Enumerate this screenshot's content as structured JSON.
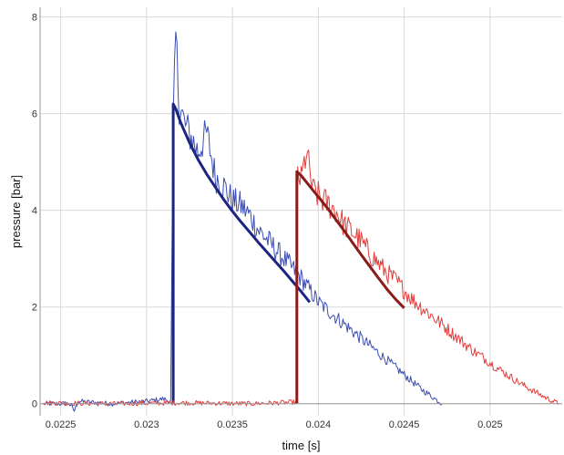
{
  "chart_data": {
    "type": "line",
    "title": "",
    "xlabel": "time [s]",
    "ylabel": "pressure [bar]",
    "xlim": [
      0.02238,
      0.02542
    ],
    "ylim": [
      -0.25,
      8.2
    ],
    "x_ticks": [
      {
        "value": 0.0225,
        "label": "0.0225"
      },
      {
        "value": 0.023,
        "label": "0.023"
      },
      {
        "value": 0.0235,
        "label": "0.0235"
      },
      {
        "value": 0.024,
        "label": "0.024"
      },
      {
        "value": 0.0245,
        "label": "0.0245"
      },
      {
        "value": 0.025,
        "label": "0.025"
      }
    ],
    "y_ticks": [
      {
        "value": 0,
        "label": "0"
      },
      {
        "value": 2,
        "label": "2"
      },
      {
        "value": 4,
        "label": "4"
      },
      {
        "value": 6,
        "label": "6"
      },
      {
        "value": 8,
        "label": "8"
      }
    ],
    "grid": true,
    "legend": "none",
    "series": [
      {
        "style": "measured",
        "color": "#3b4db3",
        "x": [
          0.0224,
          0.02255,
          0.02258,
          0.0226,
          0.0228,
          0.023,
          0.0231,
          0.02314,
          0.023155,
          0.02317,
          0.02319,
          0.02322,
          0.02326,
          0.0233,
          0.02335,
          0.0234,
          0.02345,
          0.0235,
          0.02355,
          0.0236,
          0.02365,
          0.0237,
          0.02375,
          0.0238,
          0.02385,
          0.0239,
          0.02395,
          0.024,
          0.02405,
          0.0241,
          0.02415,
          0.0242,
          0.02425,
          0.0243,
          0.02435,
          0.0244,
          0.02445,
          0.0245,
          0.02455,
          0.0246,
          0.02465,
          0.0247,
          0.02472
        ],
        "y": [
          0,
          0,
          -0.15,
          0.05,
          0,
          0.05,
          0.1,
          0.05,
          5.7,
          7.6,
          6.2,
          5.8,
          5.5,
          5.2,
          5.6,
          4.7,
          4.5,
          4.2,
          4.1,
          3.9,
          3.6,
          3.4,
          3.2,
          3.0,
          2.8,
          2.6,
          2.35,
          2.1,
          1.95,
          1.8,
          1.65,
          1.5,
          1.35,
          1.2,
          1.05,
          0.9,
          0.75,
          0.6,
          0.45,
          0.3,
          0.18,
          0.05,
          0
        ]
      },
      {
        "style": "fit",
        "color": "#1c2580",
        "x": [
          0.023155,
          0.023155,
          0.02317,
          0.0232,
          0.02325,
          0.0233,
          0.02335,
          0.0234,
          0.02345,
          0.0235,
          0.02355,
          0.0236,
          0.02365,
          0.0237,
          0.02375,
          0.0238,
          0.02385,
          0.0239,
          0.02395
        ],
        "y": [
          0,
          6.2,
          6.1,
          5.8,
          5.4,
          5.05,
          4.75,
          4.48,
          4.22,
          3.98,
          3.76,
          3.55,
          3.34,
          3.14,
          2.94,
          2.74,
          2.53,
          2.32,
          2.1
        ]
      },
      {
        "style": "measured",
        "color": "#e23b3b",
        "x": [
          0.0224,
          0.0228,
          0.0232,
          0.0236,
          0.02385,
          0.023875,
          0.02388,
          0.0239,
          0.02393,
          0.02397,
          0.024,
          0.02405,
          0.0241,
          0.02415,
          0.0242,
          0.02425,
          0.0243,
          0.02435,
          0.0244,
          0.02445,
          0.0245,
          0.02455,
          0.0246,
          0.02465,
          0.0247,
          0.02475,
          0.0248,
          0.02485,
          0.0249,
          0.02495,
          0.025,
          0.02505,
          0.0251,
          0.02515,
          0.0252,
          0.02525,
          0.0253,
          0.02535,
          0.0254
        ],
        "y": [
          0.02,
          0.0,
          0.02,
          0.0,
          0.03,
          0.03,
          4.8,
          4.6,
          5.2,
          4.4,
          4.3,
          4.15,
          4.0,
          3.7,
          3.55,
          3.35,
          3.1,
          2.9,
          2.7,
          2.55,
          2.35,
          2.15,
          2.0,
          1.85,
          1.7,
          1.55,
          1.4,
          1.25,
          1.1,
          0.98,
          0.85,
          0.72,
          0.6,
          0.48,
          0.37,
          0.27,
          0.17,
          0.08,
          0.0
        ]
      },
      {
        "style": "fit",
        "color": "#8b1c1c",
        "x": [
          0.023875,
          0.023875,
          0.0239,
          0.02395,
          0.024,
          0.02405,
          0.0241,
          0.02415,
          0.0242,
          0.02425,
          0.0243,
          0.02435,
          0.0244,
          0.02445,
          0.0245
        ],
        "y": [
          0,
          4.8,
          4.72,
          4.5,
          4.28,
          4.06,
          3.82,
          3.58,
          3.33,
          3.08,
          2.84,
          2.6,
          2.37,
          2.16,
          1.98
        ]
      }
    ]
  }
}
